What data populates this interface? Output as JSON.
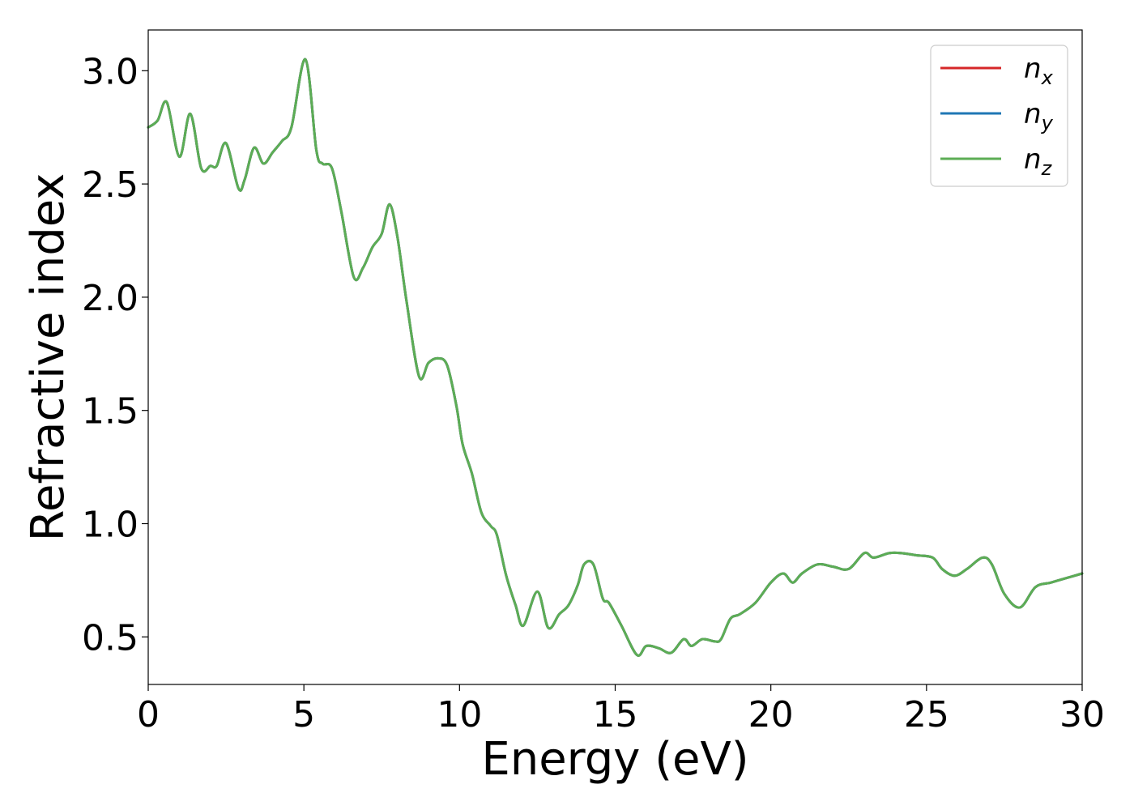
{
  "chart_data": {
    "type": "line",
    "title": "",
    "xlabel": "Energy (eV)",
    "ylabel": "Refractive index",
    "xlim": [
      0,
      30
    ],
    "ylim": [
      0.29,
      3.18
    ],
    "xticks": [
      0,
      5,
      10,
      15,
      20,
      25,
      30
    ],
    "xtick_labels": [
      "0",
      "5",
      "10",
      "15",
      "20",
      "25",
      "30"
    ],
    "yticks": [
      0.5,
      1.0,
      1.5,
      2.0,
      2.5,
      3.0
    ],
    "ytick_labels": [
      "0.5",
      "1.0",
      "1.5",
      "2.0",
      "2.5",
      "3.0"
    ],
    "grid": false,
    "legend_position": "top-right",
    "series": [
      {
        "name": "n",
        "subscript": "x",
        "color": "#d62728"
      },
      {
        "name": "n",
        "subscript": "y",
        "color": "#1f77b4"
      },
      {
        "name": "n",
        "subscript": "z",
        "color": "#5cad55"
      }
    ],
    "x": [
      0,
      0.3,
      0.6,
      1.0,
      1.35,
      1.7,
      2.0,
      2.2,
      2.5,
      2.9,
      3.1,
      3.4,
      3.7,
      4.0,
      4.3,
      4.6,
      5.05,
      5.4,
      5.6,
      5.9,
      6.2,
      6.6,
      6.9,
      7.2,
      7.5,
      7.75,
      8.0,
      8.3,
      8.7,
      9.0,
      9.3,
      9.6,
      9.9,
      10.1,
      10.4,
      10.7,
      11.0,
      11.2,
      11.5,
      11.8,
      12.05,
      12.5,
      12.85,
      13.2,
      13.5,
      13.8,
      14.0,
      14.3,
      14.6,
      14.8,
      15.2,
      15.7,
      16.0,
      16.4,
      16.8,
      17.2,
      17.45,
      17.8,
      18.2,
      18.4,
      18.7,
      19.0,
      19.5,
      20.0,
      20.4,
      20.7,
      21.0,
      21.5,
      22.0,
      22.5,
      23.0,
      23.3,
      23.8,
      24.2,
      24.7,
      25.2,
      25.5,
      25.9,
      26.3,
      26.8,
      27.1,
      27.5,
      28.0,
      28.5,
      29.0,
      29.5,
      30.0
    ],
    "values": [
      2.75,
      2.78,
      2.86,
      2.62,
      2.81,
      2.57,
      2.58,
      2.58,
      2.68,
      2.48,
      2.52,
      2.66,
      2.59,
      2.64,
      2.69,
      2.75,
      3.05,
      2.65,
      2.59,
      2.57,
      2.38,
      2.09,
      2.13,
      2.22,
      2.28,
      2.41,
      2.27,
      1.98,
      1.65,
      1.71,
      1.73,
      1.7,
      1.52,
      1.35,
      1.22,
      1.05,
      0.99,
      0.95,
      0.77,
      0.64,
      0.55,
      0.7,
      0.54,
      0.6,
      0.64,
      0.73,
      0.82,
      0.82,
      0.67,
      0.65,
      0.55,
      0.42,
      0.46,
      0.45,
      0.43,
      0.49,
      0.46,
      0.49,
      0.48,
      0.49,
      0.58,
      0.6,
      0.65,
      0.74,
      0.78,
      0.74,
      0.78,
      0.82,
      0.81,
      0.8,
      0.87,
      0.85,
      0.87,
      0.87,
      0.86,
      0.85,
      0.8,
      0.77,
      0.8,
      0.85,
      0.82,
      0.69,
      0.63,
      0.72,
      0.74,
      0.76,
      0.78
    ]
  }
}
